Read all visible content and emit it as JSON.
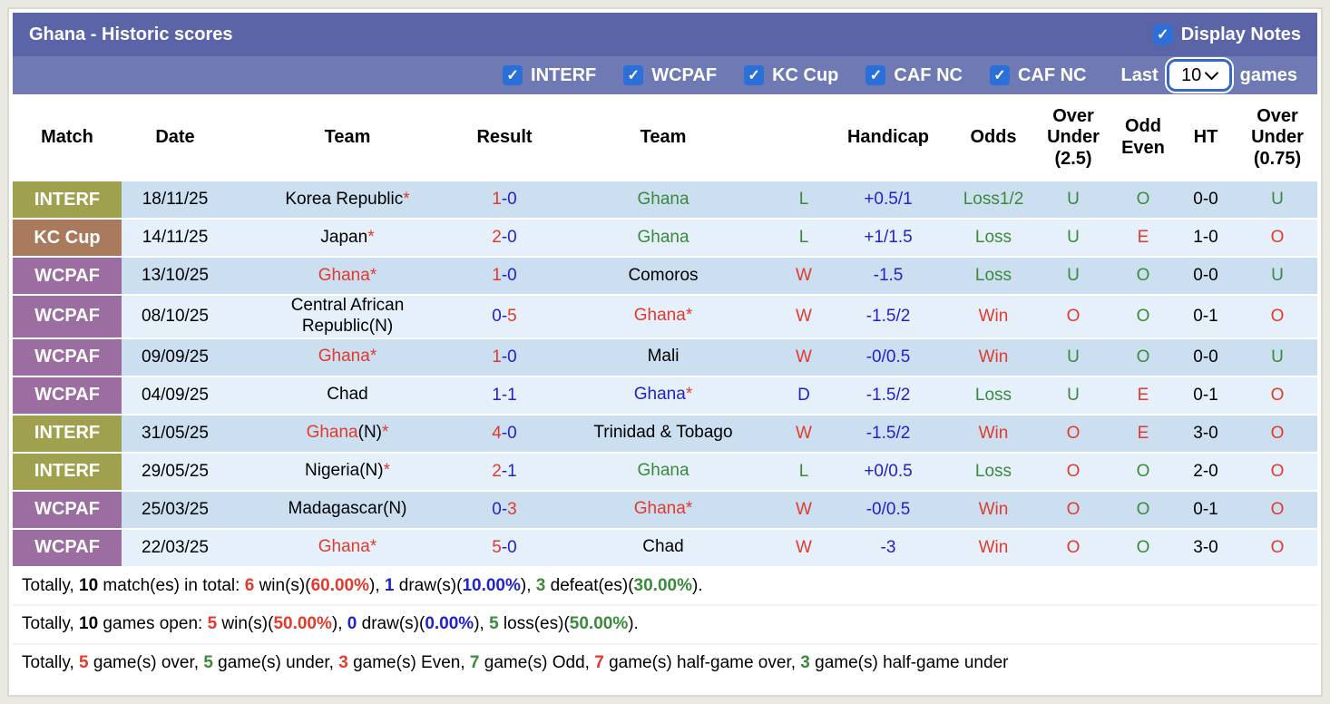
{
  "colors": {
    "red": "#e23a2c",
    "green": "#3a8a3a",
    "blue": "#2222cc",
    "black": "#000000",
    "white": "#ffffff",
    "olive": "#a0a14f",
    "brown": "#aa7a5c",
    "purple": "#9c6da0",
    "topbar": "#5a64a7",
    "filterbar": "#6f7ab5",
    "checkbox_blue": "#2b70d9",
    "row_dark": "#cbdff0",
    "row_light": "#e5f0fa"
  },
  "header": {
    "title": "Ghana - Historic scores",
    "display_notes_label": "Display Notes",
    "display_notes_checked": true
  },
  "filters": {
    "items": [
      "INTERF",
      "WCPAF",
      "KC Cup",
      "CAF NC",
      "CAF NC"
    ],
    "all_checked": true,
    "last_label": "Last",
    "games_count": "10",
    "games_label": "games"
  },
  "table": {
    "headers": [
      "Match",
      "Date",
      "Team",
      "Result",
      "Team",
      "",
      "Handicap",
      "Odds",
      "Over Under (2.5)",
      "Odd Even",
      "HT",
      "Over Under (0.75)"
    ],
    "rows": [
      {
        "badge": {
          "text": "INTERF",
          "color": "olive"
        },
        "date": "18/11/25",
        "home": {
          "name": "Korea Republic",
          "note": "",
          "star": true,
          "color": "black"
        },
        "result": {
          "home": "1",
          "away": "0",
          "home_color": "red",
          "away_color": "blue",
          "dash_color": "blue"
        },
        "away": {
          "name": "Ghana",
          "note": "",
          "star": false,
          "color": "green"
        },
        "wdl": {
          "text": "L",
          "color": "green"
        },
        "handicap": {
          "text": "+0.5/1",
          "color": "blue"
        },
        "odds": {
          "text": "Loss1/2",
          "color": "green"
        },
        "ou25": {
          "text": "U",
          "color": "green"
        },
        "oe": {
          "text": "O",
          "color": "green"
        },
        "ht": "0-0",
        "ou075": {
          "text": "U",
          "color": "green"
        }
      },
      {
        "badge": {
          "text": "KC Cup",
          "color": "brown"
        },
        "date": "14/11/25",
        "home": {
          "name": "Japan",
          "note": "",
          "star": true,
          "color": "black"
        },
        "result": {
          "home": "2",
          "away": "0",
          "home_color": "red",
          "away_color": "blue",
          "dash_color": "blue"
        },
        "away": {
          "name": "Ghana",
          "note": "",
          "star": false,
          "color": "green"
        },
        "wdl": {
          "text": "L",
          "color": "green"
        },
        "handicap": {
          "text": "+1/1.5",
          "color": "blue"
        },
        "odds": {
          "text": "Loss",
          "color": "green"
        },
        "ou25": {
          "text": "U",
          "color": "green"
        },
        "oe": {
          "text": "E",
          "color": "red"
        },
        "ht": "1-0",
        "ou075": {
          "text": "O",
          "color": "red"
        }
      },
      {
        "badge": {
          "text": "WCPAF",
          "color": "purple"
        },
        "date": "13/10/25",
        "home": {
          "name": "Ghana",
          "note": "",
          "star": true,
          "color": "red"
        },
        "result": {
          "home": "1",
          "away": "0",
          "home_color": "red",
          "away_color": "blue",
          "dash_color": "blue"
        },
        "away": {
          "name": "Comoros",
          "note": "",
          "star": false,
          "color": "black"
        },
        "wdl": {
          "text": "W",
          "color": "red"
        },
        "handicap": {
          "text": "-1.5",
          "color": "blue"
        },
        "odds": {
          "text": "Loss",
          "color": "green"
        },
        "ou25": {
          "text": "U",
          "color": "green"
        },
        "oe": {
          "text": "O",
          "color": "green"
        },
        "ht": "0-0",
        "ou075": {
          "text": "U",
          "color": "green"
        }
      },
      {
        "badge": {
          "text": "WCPAF",
          "color": "purple"
        },
        "date": "08/10/25",
        "home": {
          "name": "Central African Republic",
          "note": "(N)",
          "star": false,
          "color": "black"
        },
        "result": {
          "home": "0",
          "away": "5",
          "home_color": "blue",
          "away_color": "red",
          "dash_color": "blue"
        },
        "away": {
          "name": "Ghana",
          "note": "",
          "star": true,
          "color": "red"
        },
        "wdl": {
          "text": "W",
          "color": "red"
        },
        "handicap": {
          "text": "-1.5/2",
          "color": "blue"
        },
        "odds": {
          "text": "Win",
          "color": "red"
        },
        "ou25": {
          "text": "O",
          "color": "red"
        },
        "oe": {
          "text": "O",
          "color": "green"
        },
        "ht": "0-1",
        "ou075": {
          "text": "O",
          "color": "red"
        }
      },
      {
        "badge": {
          "text": "WCPAF",
          "color": "purple"
        },
        "date": "09/09/25",
        "home": {
          "name": "Ghana",
          "note": "",
          "star": true,
          "color": "red"
        },
        "result": {
          "home": "1",
          "away": "0",
          "home_color": "red",
          "away_color": "blue",
          "dash_color": "blue"
        },
        "away": {
          "name": "Mali",
          "note": "",
          "star": false,
          "color": "black"
        },
        "wdl": {
          "text": "W",
          "color": "red"
        },
        "handicap": {
          "text": "-0/0.5",
          "color": "blue"
        },
        "odds": {
          "text": "Win",
          "color": "red"
        },
        "ou25": {
          "text": "U",
          "color": "green"
        },
        "oe": {
          "text": "O",
          "color": "green"
        },
        "ht": "0-0",
        "ou075": {
          "text": "U",
          "color": "green"
        }
      },
      {
        "badge": {
          "text": "WCPAF",
          "color": "purple"
        },
        "date": "04/09/25",
        "home": {
          "name": "Chad",
          "note": "",
          "star": false,
          "color": "black"
        },
        "result": {
          "home": "1",
          "away": "1",
          "home_color": "blue",
          "away_color": "blue",
          "dash_color": "blue"
        },
        "away": {
          "name": "Ghana",
          "note": "",
          "star": true,
          "color": "blue"
        },
        "wdl": {
          "text": "D",
          "color": "blue"
        },
        "handicap": {
          "text": "-1.5/2",
          "color": "blue"
        },
        "odds": {
          "text": "Loss",
          "color": "green"
        },
        "ou25": {
          "text": "U",
          "color": "green"
        },
        "oe": {
          "text": "E",
          "color": "red"
        },
        "ht": "0-1",
        "ou075": {
          "text": "O",
          "color": "red"
        }
      },
      {
        "badge": {
          "text": "INTERF",
          "color": "olive"
        },
        "date": "31/05/25",
        "home": {
          "name": "Ghana",
          "note": "(N)",
          "star": true,
          "color": "red"
        },
        "result": {
          "home": "4",
          "away": "0",
          "home_color": "red",
          "away_color": "blue",
          "dash_color": "blue"
        },
        "away": {
          "name": "Trinidad & Tobago",
          "note": "",
          "star": false,
          "color": "black"
        },
        "wdl": {
          "text": "W",
          "color": "red"
        },
        "handicap": {
          "text": "-1.5/2",
          "color": "blue"
        },
        "odds": {
          "text": "Win",
          "color": "red"
        },
        "ou25": {
          "text": "O",
          "color": "red"
        },
        "oe": {
          "text": "E",
          "color": "red"
        },
        "ht": "3-0",
        "ou075": {
          "text": "O",
          "color": "red"
        }
      },
      {
        "badge": {
          "text": "INTERF",
          "color": "olive"
        },
        "date": "29/05/25",
        "home": {
          "name": "Nigeria",
          "note": "(N)",
          "star": true,
          "color": "black"
        },
        "result": {
          "home": "2",
          "away": "1",
          "home_color": "red",
          "away_color": "blue",
          "dash_color": "blue"
        },
        "away": {
          "name": "Ghana",
          "note": "",
          "star": false,
          "color": "green"
        },
        "wdl": {
          "text": "L",
          "color": "green"
        },
        "handicap": {
          "text": "+0/0.5",
          "color": "blue"
        },
        "odds": {
          "text": "Loss",
          "color": "green"
        },
        "ou25": {
          "text": "O",
          "color": "red"
        },
        "oe": {
          "text": "O",
          "color": "green"
        },
        "ht": "2-0",
        "ou075": {
          "text": "O",
          "color": "red"
        }
      },
      {
        "badge": {
          "text": "WCPAF",
          "color": "purple"
        },
        "date": "25/03/25",
        "home": {
          "name": "Madagascar",
          "note": "(N)",
          "star": false,
          "color": "black"
        },
        "result": {
          "home": "0",
          "away": "3",
          "home_color": "blue",
          "away_color": "red",
          "dash_color": "blue"
        },
        "away": {
          "name": "Ghana",
          "note": "",
          "star": true,
          "color": "red"
        },
        "wdl": {
          "text": "W",
          "color": "red"
        },
        "handicap": {
          "text": "-0/0.5",
          "color": "blue"
        },
        "odds": {
          "text": "Win",
          "color": "red"
        },
        "ou25": {
          "text": "O",
          "color": "red"
        },
        "oe": {
          "text": "O",
          "color": "green"
        },
        "ht": "0-1",
        "ou075": {
          "text": "O",
          "color": "red"
        }
      },
      {
        "badge": {
          "text": "WCPAF",
          "color": "purple"
        },
        "date": "22/03/25",
        "home": {
          "name": "Ghana",
          "note": "",
          "star": true,
          "color": "red"
        },
        "result": {
          "home": "5",
          "away": "0",
          "home_color": "red",
          "away_color": "blue",
          "dash_color": "blue"
        },
        "away": {
          "name": "Chad",
          "note": "",
          "star": false,
          "color": "black"
        },
        "wdl": {
          "text": "W",
          "color": "red"
        },
        "handicap": {
          "text": "-3",
          "color": "blue"
        },
        "odds": {
          "text": "Win",
          "color": "red"
        },
        "ou25": {
          "text": "O",
          "color": "red"
        },
        "oe": {
          "text": "O",
          "color": "green"
        },
        "ht": "3-0",
        "ou075": {
          "text": "O",
          "color": "red"
        }
      }
    ]
  },
  "summary": {
    "lines": [
      [
        {
          "t": "Totally, "
        },
        {
          "t": "10",
          "b": 1
        },
        {
          "t": " match(es) in total: "
        },
        {
          "t": "6",
          "b": 1,
          "c": "red"
        },
        {
          "t": " win(s)("
        },
        {
          "t": "60.00%",
          "b": 1,
          "c": "red"
        },
        {
          "t": "), "
        },
        {
          "t": "1",
          "b": 1,
          "c": "blue"
        },
        {
          "t": " draw(s)("
        },
        {
          "t": "10.00%",
          "b": 1,
          "c": "blue"
        },
        {
          "t": "), "
        },
        {
          "t": "3",
          "b": 1,
          "c": "green"
        },
        {
          "t": " defeat(es)("
        },
        {
          "t": "30.00%",
          "b": 1,
          "c": "green"
        },
        {
          "t": ")."
        }
      ],
      [
        {
          "t": "Totally, "
        },
        {
          "t": "10",
          "b": 1
        },
        {
          "t": " games open: "
        },
        {
          "t": "5",
          "b": 1,
          "c": "red"
        },
        {
          "t": " win(s)("
        },
        {
          "t": "50.00%",
          "b": 1,
          "c": "red"
        },
        {
          "t": "), "
        },
        {
          "t": "0",
          "b": 1,
          "c": "blue"
        },
        {
          "t": " draw(s)("
        },
        {
          "t": "0.00%",
          "b": 1,
          "c": "blue"
        },
        {
          "t": "), "
        },
        {
          "t": "5",
          "b": 1,
          "c": "green"
        },
        {
          "t": " loss(es)("
        },
        {
          "t": "50.00%",
          "b": 1,
          "c": "green"
        },
        {
          "t": ")."
        }
      ],
      [
        {
          "t": "Totally, "
        },
        {
          "t": "5",
          "b": 1,
          "c": "red"
        },
        {
          "t": " game(s) over, "
        },
        {
          "t": "5",
          "b": 1,
          "c": "green"
        },
        {
          "t": " game(s) under, "
        },
        {
          "t": "3",
          "b": 1,
          "c": "red"
        },
        {
          "t": " game(s) Even, "
        },
        {
          "t": "7",
          "b": 1,
          "c": "green"
        },
        {
          "t": " game(s) Odd, "
        },
        {
          "t": "7",
          "b": 1,
          "c": "red"
        },
        {
          "t": " game(s) half-game over, "
        },
        {
          "t": "3",
          "b": 1,
          "c": "green"
        },
        {
          "t": " game(s) half-game under"
        }
      ]
    ]
  }
}
